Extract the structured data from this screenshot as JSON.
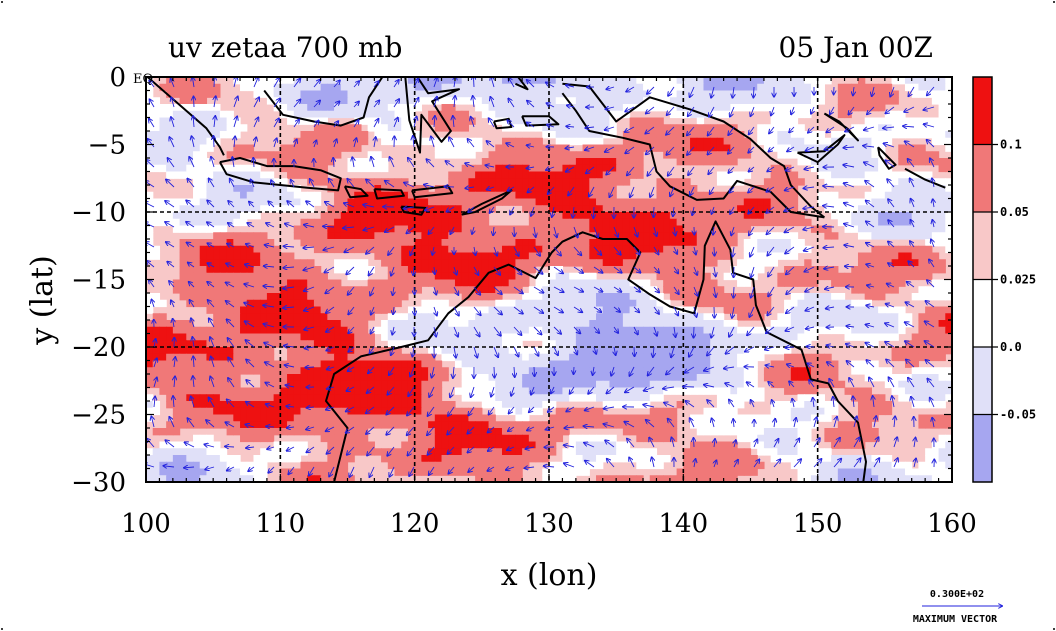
{
  "chart_data": {
    "type": "heatmap",
    "title": "uv zetaa 700 mb",
    "date_label": "05 Jan 00Z",
    "xlabel": "x (lon)",
    "ylabel": "y (lat)",
    "xlim": [
      100,
      160
    ],
    "ylim": [
      -30,
      0
    ],
    "x_ticks": [
      100,
      110,
      120,
      130,
      140,
      150,
      160
    ],
    "y_ticks": [
      0,
      -5,
      -10,
      -15,
      -20,
      -25,
      -30
    ],
    "x_tick_labels": [
      "100",
      "110",
      "120",
      "130",
      "140",
      "150",
      "160"
    ],
    "y_tick_labels": [
      "0",
      "−5",
      "−10",
      "−15",
      "−20",
      "−25",
      "−30"
    ],
    "equator_label": "EQ",
    "grid_lon": [
      110,
      120,
      130,
      140,
      150
    ],
    "grid_lat": [
      -10,
      -20
    ],
    "colorbar": {
      "levels": [
        -0.05,
        0.0,
        0.025,
        0.05,
        0.1
      ],
      "level_labels": [
        "-0.05",
        "0.0",
        "0.025",
        "0.05",
        "0.1"
      ],
      "colors": [
        "#a6a6f0",
        "#e0e0f8",
        "#ffffff",
        "#f8c8c8",
        "#f07878",
        "#ee1111"
      ]
    },
    "vector_key": {
      "value_label": "0.300E+02",
      "caption": "MAXIMUM VECTOR"
    },
    "coastlines": [
      {
        "name": "sumatra",
        "points": [
          [
            100.0,
            0.1
          ],
          [
            101.5,
            -1.2
          ],
          [
            103.0,
            -2.5
          ],
          [
            104.5,
            -3.8
          ],
          [
            105.5,
            -5.2
          ],
          [
            105.8,
            -5.8
          ]
        ]
      },
      {
        "name": "java",
        "points": [
          [
            105.5,
            -6.3
          ],
          [
            107.0,
            -6.0
          ],
          [
            109.0,
            -6.6
          ],
          [
            111.0,
            -6.6
          ],
          [
            113.0,
            -6.9
          ],
          [
            114.5,
            -7.5
          ],
          [
            114.3,
            -8.4
          ],
          [
            112.0,
            -8.2
          ],
          [
            110.0,
            -8.0
          ],
          [
            108.0,
            -7.8
          ],
          [
            106.0,
            -7.2
          ],
          [
            105.5,
            -6.3
          ]
        ]
      },
      {
        "name": "bali-lombok",
        "points": [
          [
            114.8,
            -8.1
          ],
          [
            116.0,
            -8.3
          ],
          [
            116.5,
            -8.8
          ],
          [
            115.2,
            -8.9
          ],
          [
            114.8,
            -8.1
          ]
        ]
      },
      {
        "name": "sumbawa",
        "points": [
          [
            117.0,
            -8.3
          ],
          [
            119.0,
            -8.4
          ],
          [
            119.2,
            -8.8
          ],
          [
            117.2,
            -9.0
          ],
          [
            117.0,
            -8.3
          ]
        ]
      },
      {
        "name": "flores",
        "points": [
          [
            119.8,
            -8.4
          ],
          [
            122.5,
            -8.1
          ],
          [
            122.8,
            -8.6
          ],
          [
            120.0,
            -8.9
          ],
          [
            119.8,
            -8.4
          ]
        ]
      },
      {
        "name": "sumba",
        "points": [
          [
            119.0,
            -9.6
          ],
          [
            120.8,
            -9.7
          ],
          [
            120.5,
            -10.2
          ],
          [
            119.2,
            -10.0
          ],
          [
            119.0,
            -9.6
          ]
        ]
      },
      {
        "name": "timor",
        "points": [
          [
            123.5,
            -10.2
          ],
          [
            125.0,
            -9.4
          ],
          [
            127.2,
            -8.4
          ],
          [
            126.5,
            -9.0
          ],
          [
            124.5,
            -10.0
          ],
          [
            123.5,
            -10.2
          ]
        ]
      },
      {
        "name": "borneo",
        "points": [
          [
            108.8,
            -1.0
          ],
          [
            110.2,
            -2.8
          ],
          [
            112.5,
            -3.3
          ],
          [
            114.5,
            -3.6
          ],
          [
            116.2,
            -3.0
          ],
          [
            116.6,
            -1.5
          ],
          [
            117.6,
            0.0
          ]
        ]
      },
      {
        "name": "sulawesi",
        "points": [
          [
            119.3,
            0.0
          ],
          [
            119.6,
            -3.2
          ],
          [
            120.4,
            -5.6
          ],
          [
            120.5,
            -2.8
          ],
          [
            122.0,
            -4.8
          ],
          [
            122.7,
            -4.0
          ],
          [
            121.3,
            -1.8
          ],
          [
            123.3,
            -0.9
          ],
          [
            121.0,
            -1.2
          ],
          [
            120.2,
            0.0
          ]
        ]
      },
      {
        "name": "buru",
        "points": [
          [
            125.9,
            -3.3
          ],
          [
            127.0,
            -3.1
          ],
          [
            127.2,
            -3.7
          ],
          [
            126.1,
            -3.8
          ],
          [
            125.9,
            -3.3
          ]
        ]
      },
      {
        "name": "seram",
        "points": [
          [
            128.0,
            -2.9
          ],
          [
            130.0,
            -2.9
          ],
          [
            130.7,
            -3.5
          ],
          [
            128.3,
            -3.6
          ],
          [
            128.0,
            -2.9
          ]
        ]
      },
      {
        "name": "halmahera",
        "points": [
          [
            127.7,
            0.0
          ],
          [
            128.4,
            -0.9
          ],
          [
            127.5,
            -0.5
          ]
        ]
      },
      {
        "name": "new-guinea-north",
        "points": [
          [
            131.0,
            -0.5
          ],
          [
            133.0,
            -0.7
          ],
          [
            135.0,
            -3.3
          ],
          [
            137.5,
            -1.5
          ],
          [
            140.5,
            -2.4
          ],
          [
            143.0,
            -3.3
          ],
          [
            145.0,
            -4.6
          ],
          [
            146.5,
            -6.0
          ],
          [
            147.5,
            -6.6
          ],
          [
            148.0,
            -8.0
          ],
          [
            149.5,
            -9.6
          ],
          [
            150.5,
            -10.4
          ]
        ]
      },
      {
        "name": "new-guinea-south",
        "points": [
          [
            150.5,
            -10.4
          ],
          [
            148.0,
            -10.0
          ],
          [
            146.5,
            -8.5
          ],
          [
            144.0,
            -7.7
          ],
          [
            143.0,
            -9.0
          ],
          [
            141.0,
            -9.1
          ],
          [
            139.0,
            -8.1
          ],
          [
            138.0,
            -7.0
          ],
          [
            137.5,
            -5.0
          ],
          [
            135.5,
            -4.5
          ],
          [
            133.0,
            -4.0
          ],
          [
            132.0,
            -2.5
          ],
          [
            131.0,
            -1.2
          ]
        ]
      },
      {
        "name": "new-britain",
        "points": [
          [
            148.5,
            -5.6
          ],
          [
            150.5,
            -5.5
          ],
          [
            152.0,
            -4.3
          ],
          [
            151.5,
            -5.0
          ],
          [
            150.0,
            -6.3
          ],
          [
            148.5,
            -5.6
          ]
        ]
      },
      {
        "name": "new-ireland",
        "points": [
          [
            150.5,
            -2.7
          ],
          [
            152.2,
            -3.8
          ],
          [
            153.0,
            -4.7
          ],
          [
            151.6,
            -3.3
          ],
          [
            150.5,
            -2.7
          ]
        ]
      },
      {
        "name": "bougainville",
        "points": [
          [
            154.5,
            -5.2
          ],
          [
            155.8,
            -6.5
          ],
          [
            155.3,
            -6.8
          ],
          [
            154.6,
            -5.8
          ],
          [
            154.5,
            -5.2
          ]
        ]
      },
      {
        "name": "solomons",
        "points": [
          [
            156.5,
            -6.8
          ],
          [
            158.0,
            -7.6
          ],
          [
            159.5,
            -8.2
          ]
        ]
      },
      {
        "name": "australia",
        "points": [
          [
            114.0,
            -30.0
          ],
          [
            115.0,
            -26.0
          ],
          [
            113.4,
            -24.0
          ],
          [
            114.0,
            -22.0
          ],
          [
            116.0,
            -20.7
          ],
          [
            119.0,
            -20.0
          ],
          [
            121.0,
            -19.5
          ],
          [
            122.5,
            -17.5
          ],
          [
            124.0,
            -16.3
          ],
          [
            125.5,
            -14.5
          ],
          [
            127.0,
            -13.9
          ],
          [
            129.0,
            -14.9
          ],
          [
            130.2,
            -13.0
          ],
          [
            131.0,
            -12.2
          ],
          [
            132.5,
            -11.5
          ],
          [
            134.0,
            -12.0
          ],
          [
            135.8,
            -12.0
          ],
          [
            136.8,
            -13.0
          ],
          [
            135.9,
            -15.0
          ],
          [
            137.5,
            -16.1
          ],
          [
            139.0,
            -17.0
          ],
          [
            140.8,
            -17.5
          ],
          [
            141.5,
            -15.0
          ],
          [
            141.6,
            -12.5
          ],
          [
            142.4,
            -10.7
          ],
          [
            143.5,
            -12.8
          ],
          [
            143.7,
            -14.5
          ],
          [
            145.2,
            -15.0
          ],
          [
            145.4,
            -16.9
          ],
          [
            146.2,
            -18.9
          ],
          [
            148.8,
            -20.2
          ],
          [
            149.5,
            -22.4
          ],
          [
            150.8,
            -22.7
          ],
          [
            151.5,
            -24.0
          ],
          [
            153.0,
            -25.6
          ],
          [
            153.6,
            -28.5
          ],
          [
            153.4,
            -30.0
          ]
        ]
      }
    ]
  }
}
